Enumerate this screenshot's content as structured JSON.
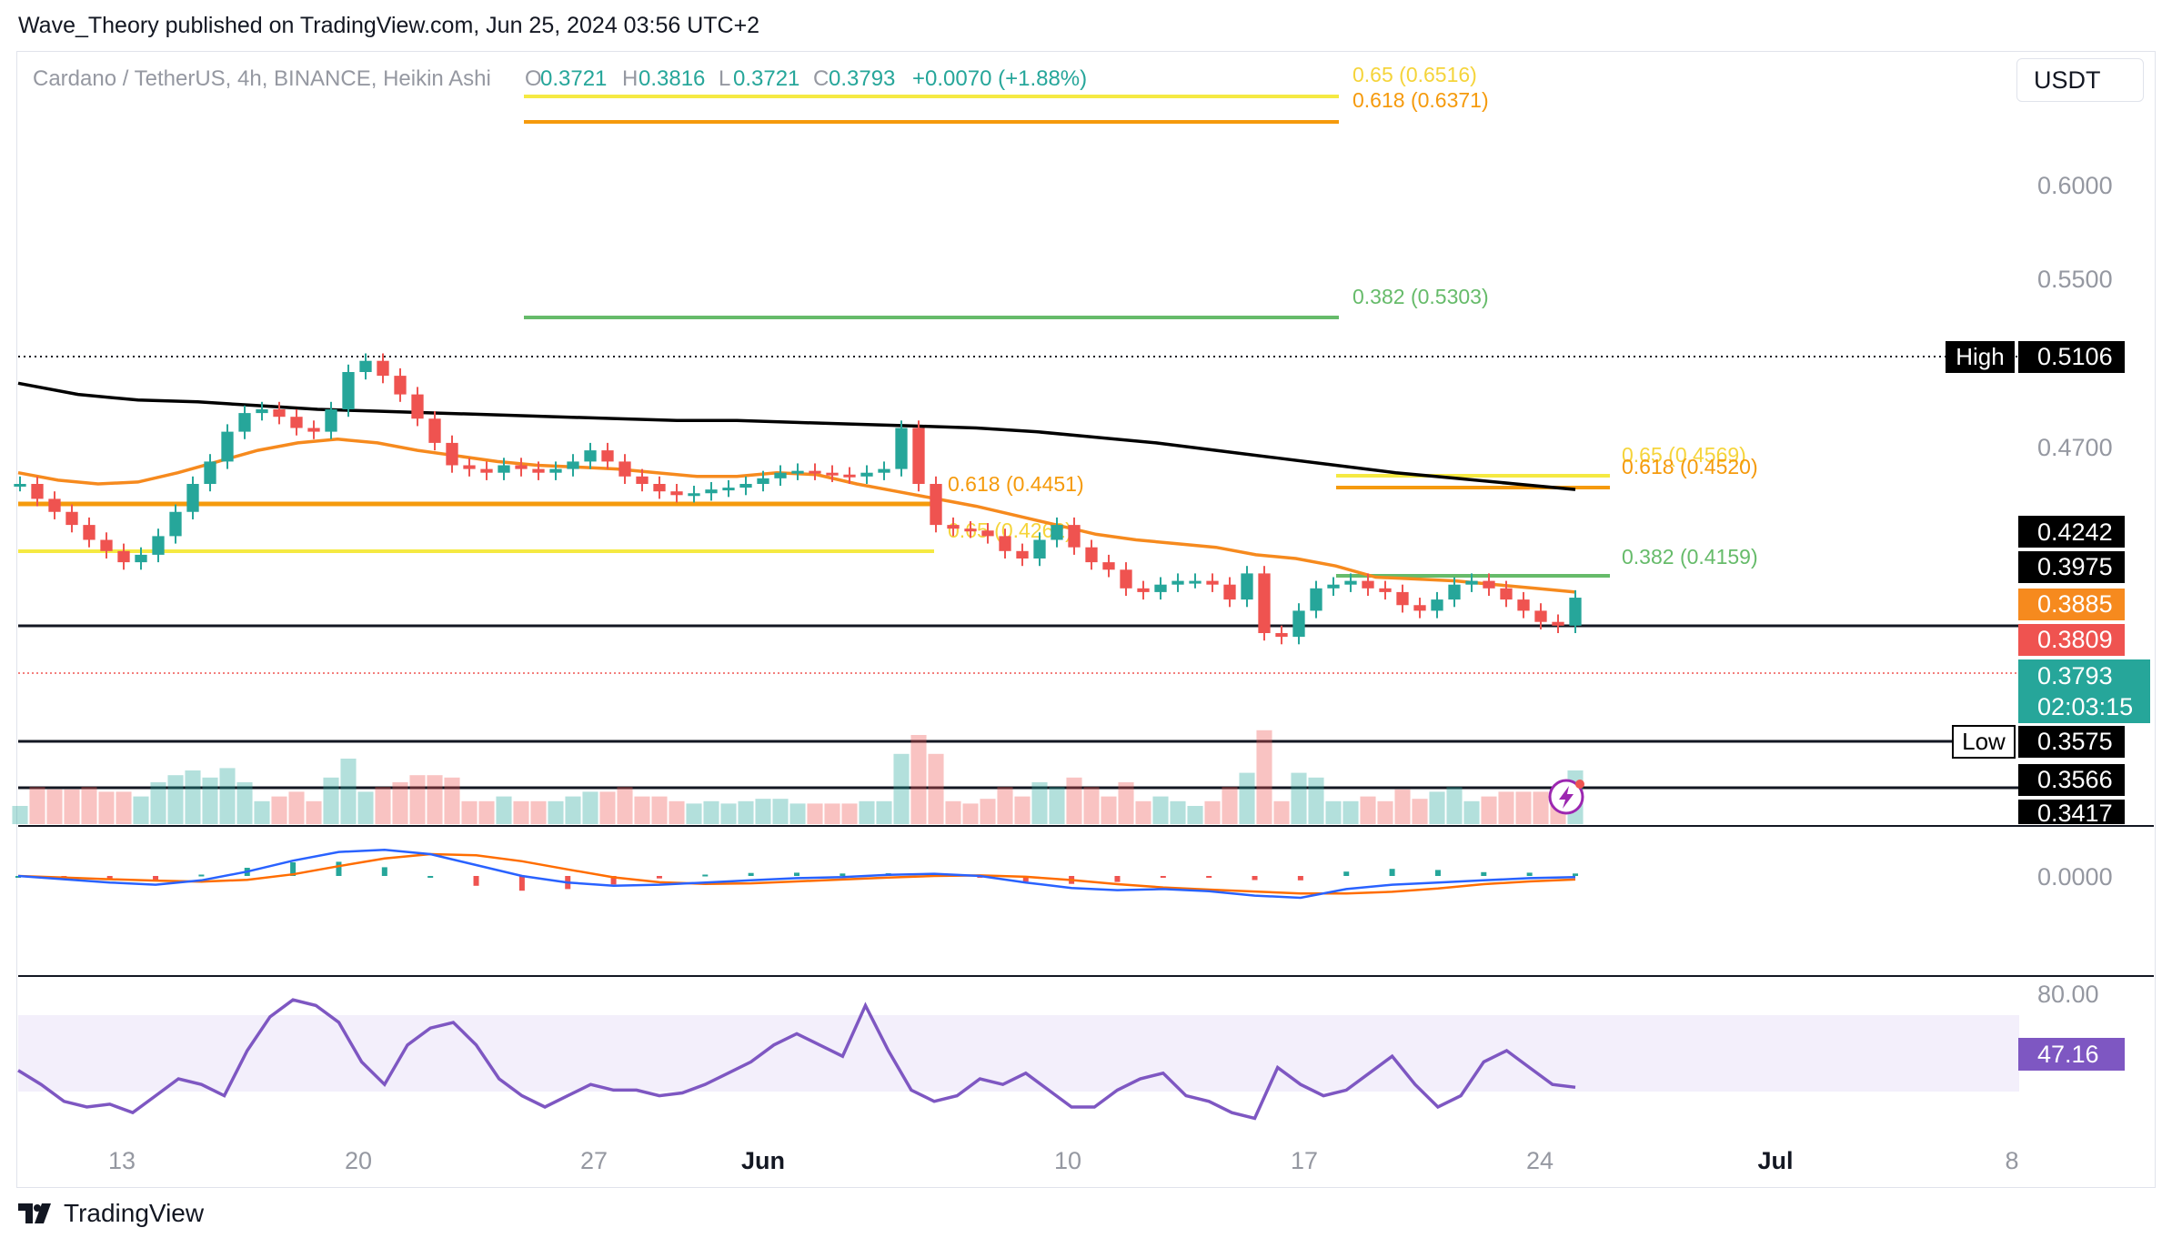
{
  "attribution": "Wave_Theory published on TradingView.com, Jun 25, 2024 03:56 UTC+2",
  "footer_brand": "TradingView",
  "currency_button": "USDT",
  "legend": {
    "symbol": "Cardano / TetherUS, 4h, BINANCE, Heikin Ashi",
    "o_label": "O",
    "o_value": "0.3721",
    "h_label": "H",
    "h_value": "0.3816",
    "l_label": "L",
    "l_value": "0.3721",
    "c_label": "C",
    "c_value": "0.3793",
    "change": "+0.0070 (+1.88%)"
  },
  "colors": {
    "up": "#26a69a",
    "down": "#ef5350",
    "ema50": "#f68a1e",
    "ema200": "#000000",
    "fib_yellow": "#f5e942",
    "fib_orange": "#f59a0c",
    "fib_green": "#66bb6a",
    "rsi": "#7e57c2",
    "macd": "#2962ff",
    "signal": "#ff6d00"
  },
  "chart_data": [
    {
      "type": "line",
      "panel": "price",
      "ylim": [
        0.3417,
        0.6516
      ],
      "x_ticks": [
        "13",
        "20",
        "27",
        "Jun",
        "10",
        "17",
        "24",
        "Jul",
        "8"
      ],
      "y_ticks": [
        "0.6000",
        "0.5500",
        "0.4700"
      ],
      "candles_close_approx": [
        0.44,
        0.432,
        0.425,
        0.418,
        0.41,
        0.404,
        0.398,
        0.402,
        0.412,
        0.425,
        0.44,
        0.452,
        0.468,
        0.478,
        0.48,
        0.476,
        0.47,
        0.468,
        0.48,
        0.5,
        0.506,
        0.498,
        0.488,
        0.475,
        0.462,
        0.45,
        0.448,
        0.446,
        0.45,
        0.448,
        0.446,
        0.448,
        0.452,
        0.458,
        0.452,
        0.444,
        0.44,
        0.436,
        0.434,
        0.435,
        0.437,
        0.438,
        0.44,
        0.443,
        0.446,
        0.447,
        0.446,
        0.445,
        0.444,
        0.446,
        0.448,
        0.47,
        0.44,
        0.418,
        0.416,
        0.415,
        0.412,
        0.404,
        0.4,
        0.41,
        0.418,
        0.406,
        0.398,
        0.394,
        0.384,
        0.382,
        0.386,
        0.388,
        0.388,
        0.386,
        0.378,
        0.392,
        0.36,
        0.358,
        0.372,
        0.384,
        0.386,
        0.388,
        0.384,
        0.382,
        0.375,
        0.372,
        0.378,
        0.386,
        0.388,
        0.384,
        0.378,
        0.372,
        0.366,
        0.364,
        0.379
      ],
      "ema50_approx": [
        0.446,
        0.442,
        0.44,
        0.441,
        0.446,
        0.452,
        0.458,
        0.462,
        0.464,
        0.462,
        0.458,
        0.455,
        0.452,
        0.45,
        0.449,
        0.448,
        0.446,
        0.444,
        0.444,
        0.446,
        0.445,
        0.44,
        0.436,
        0.432,
        0.428,
        0.423,
        0.418,
        0.413,
        0.41,
        0.408,
        0.406,
        0.402,
        0.4,
        0.396,
        0.39,
        0.389,
        0.388,
        0.386,
        0.384,
        0.382
      ],
      "ema200_approx": [
        0.494,
        0.488,
        0.485,
        0.484,
        0.482,
        0.48,
        0.479,
        0.478,
        0.477,
        0.476,
        0.475,
        0.474,
        0.474,
        0.473,
        0.472,
        0.471,
        0.47,
        0.468,
        0.465,
        0.462,
        0.458,
        0.454,
        0.45,
        0.446,
        0.443,
        0.44,
        0.437
      ],
      "fib_levels": [
        {
          "label": "0.65 (0.6516)",
          "value": 0.6516,
          "color": "yellow"
        },
        {
          "label": "0.618 (0.6371)",
          "value": 0.6371,
          "color": "orange"
        },
        {
          "label": "0.382 (0.5303)",
          "value": 0.5303,
          "color": "green"
        },
        {
          "label": "0.618 (0.4451)",
          "value": 0.4451,
          "color": "orange"
        },
        {
          "label": "0.65 (0.4262)",
          "value": 0.4262,
          "color": "yellow"
        },
        {
          "label": "0.65 (0.4569)",
          "value": 0.4569,
          "color": "yellow"
        },
        {
          "label": "0.618 (0.4520)",
          "value": 0.452,
          "color": "orange"
        },
        {
          "label": "0.382 (0.4159)",
          "value": 0.4159,
          "color": "green"
        }
      ],
      "horizontal_lines": [
        0.5106,
        0.3975,
        0.3575,
        0.3566
      ],
      "price_badges": [
        {
          "text": "0.5106",
          "tag": "High",
          "bg": "#000000"
        },
        {
          "text": "0.4242",
          "bg": "#000000"
        },
        {
          "text": "0.3975",
          "bg": "#000000"
        },
        {
          "text": "0.3885",
          "bg": "#f68a1e"
        },
        {
          "text": "0.3809",
          "bg": "#ef5350"
        },
        {
          "text": "0.3793",
          "sub": "02:03:15",
          "bg": "#26a69a"
        },
        {
          "text": "0.3575",
          "tag": "Low",
          "bg": "#000000"
        },
        {
          "text": "0.3566",
          "bg": "#000000"
        },
        {
          "text": "0.3417",
          "bg": "#000000"
        }
      ]
    },
    {
      "type": "line",
      "panel": "macd",
      "y_ticks": [
        "0.0000"
      ],
      "macd_approx": [
        0.0,
        -0.003,
        -0.006,
        -0.008,
        -0.004,
        0.004,
        0.014,
        0.022,
        0.024,
        0.02,
        0.01,
        0.0,
        -0.006,
        -0.009,
        -0.008,
        -0.006,
        -0.004,
        -0.002,
        -0.001,
        0.001,
        0.002,
        0.0,
        -0.006,
        -0.011,
        -0.013,
        -0.012,
        -0.014,
        -0.018,
        -0.02,
        -0.012,
        -0.008,
        -0.006,
        -0.004,
        -0.002,
        -0.001
      ]
    },
    {
      "type": "line",
      "panel": "rsi",
      "y_ticks": [
        "80.00"
      ],
      "current_badge": "47.16",
      "rsi_approx": [
        53,
        48,
        42,
        40,
        41,
        38,
        44,
        50,
        48,
        44,
        60,
        72,
        78,
        76,
        70,
        56,
        48,
        62,
        68,
        70,
        62,
        50,
        44,
        40,
        44,
        48,
        46,
        46,
        44,
        45,
        48,
        52,
        56,
        62,
        66,
        62,
        58,
        76,
        60,
        46,
        42,
        44,
        50,
        48,
        52,
        46,
        40,
        40,
        46,
        50,
        52,
        44,
        42,
        38,
        36,
        54,
        48,
        44,
        46,
        52,
        58,
        48,
        40,
        44,
        56,
        60,
        54,
        48,
        47
      ]
    }
  ]
}
